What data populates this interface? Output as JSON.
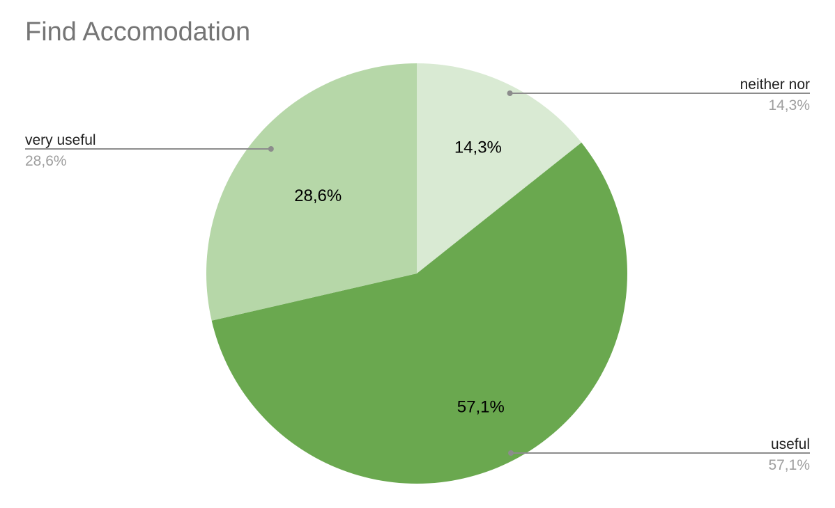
{
  "chart_data": {
    "type": "pie",
    "title": "Find Accomodation",
    "slices": [
      {
        "label": "neither nor",
        "value": 14.3,
        "display": "14,3%",
        "color": "#d9ead3"
      },
      {
        "label": "useful",
        "value": 57.1,
        "display": "57,1%",
        "color": "#6aa84f"
      },
      {
        "label": "very useful",
        "value": 28.6,
        "display": "28,6%",
        "color": "#b6d7a8"
      }
    ],
    "legend": "callouts"
  },
  "colors": {
    "leader_line": "#8c8c8c",
    "title": "#757575"
  }
}
